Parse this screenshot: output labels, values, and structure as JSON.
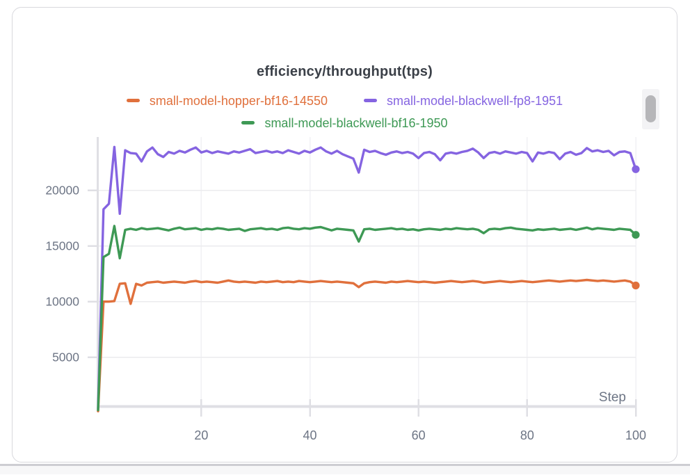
{
  "panel": {
    "background": "#ffffff",
    "border_color": "#d8d8dd"
  },
  "chart_data": {
    "type": "line",
    "title": "efficiency/throughput(tps)",
    "xlabel": "Step",
    "ylabel": "",
    "x_start": 1,
    "x_end": 100,
    "xlim": [
      1,
      100
    ],
    "ylim": [
      0,
      25000
    ],
    "x_ticks": [
      20,
      40,
      60,
      80,
      100
    ],
    "y_ticks": [
      5000,
      10000,
      15000,
      20000
    ],
    "grid": true,
    "legend_position": "top",
    "end_markers": true,
    "series": [
      {
        "name": "small-model-hopper-bf16-14550",
        "color": "#e0703c",
        "values": [
          150,
          10000,
          10000,
          10050,
          11600,
          11650,
          9800,
          11600,
          11450,
          11700,
          11750,
          11800,
          11700,
          11750,
          11800,
          11750,
          11700,
          11800,
          11850,
          11750,
          11800,
          11750,
          11700,
          11800,
          11900,
          11800,
          11750,
          11800,
          11750,
          11700,
          11800,
          11750,
          11800,
          11850,
          11750,
          11800,
          11750,
          11850,
          11800,
          11750,
          11800,
          11850,
          11800,
          11750,
          11800,
          11750,
          11700,
          11650,
          11300,
          11650,
          11750,
          11800,
          11750,
          11700,
          11800,
          11750,
          11800,
          11850,
          11800,
          11750,
          11800,
          11750,
          11700,
          11750,
          11800,
          11850,
          11800,
          11750,
          11800,
          11850,
          11800,
          11700,
          11750,
          11800,
          11850,
          11800,
          11750,
          11800,
          11850,
          11800,
          11750,
          11800,
          11850,
          11900,
          11850,
          11800,
          11850,
          11900,
          11850,
          11900,
          11950,
          11900,
          11850,
          11900,
          11850,
          11800,
          11850,
          11900,
          11800,
          11450
        ]
      },
      {
        "name": "small-model-blackwell-fp8-1951",
        "color": "#8564e1",
        "values": [
          400,
          18300,
          18800,
          23900,
          17900,
          23600,
          23350,
          23300,
          22600,
          23500,
          23850,
          23250,
          23000,
          23450,
          23300,
          23550,
          23400,
          23650,
          23850,
          23400,
          23550,
          23350,
          23500,
          23400,
          23300,
          23500,
          23400,
          23550,
          23700,
          23350,
          23450,
          23550,
          23400,
          23500,
          23350,
          23600,
          23450,
          23300,
          23550,
          23400,
          23650,
          23850,
          23500,
          23300,
          23550,
          23250,
          23050,
          22850,
          21600,
          23650,
          23450,
          23550,
          23350,
          23200,
          23400,
          23500,
          23350,
          23450,
          23300,
          22900,
          23350,
          23450,
          23250,
          22700,
          23300,
          23400,
          23300,
          23450,
          23550,
          23750,
          23400,
          22900,
          23350,
          23450,
          23300,
          23500,
          23400,
          23300,
          23450,
          23350,
          22600,
          23400,
          23300,
          23450,
          23350,
          22800,
          23300,
          23450,
          23200,
          23350,
          23800,
          23500,
          23600,
          23450,
          23550,
          23150,
          23450,
          23500,
          23350,
          21900
        ]
      },
      {
        "name": "small-model-blackwell-bf16-1950",
        "color": "#3e9955",
        "values": [
          250,
          14000,
          14300,
          16800,
          13900,
          16450,
          16550,
          16450,
          16600,
          16500,
          16550,
          16600,
          16500,
          16400,
          16550,
          16650,
          16500,
          16550,
          16600,
          16450,
          16550,
          16500,
          16600,
          16550,
          16450,
          16500,
          16550,
          16350,
          16500,
          16550,
          16600,
          16500,
          16550,
          16450,
          16600,
          16650,
          16550,
          16500,
          16600,
          16550,
          16650,
          16700,
          16550,
          16400,
          16550,
          16500,
          16450,
          16400,
          15400,
          16500,
          16550,
          16450,
          16500,
          16550,
          16600,
          16500,
          16550,
          16450,
          16500,
          16400,
          16500,
          16550,
          16500,
          16450,
          16550,
          16500,
          16600,
          16550,
          16500,
          16550,
          16450,
          16150,
          16500,
          16550,
          16500,
          16600,
          16650,
          16550,
          16500,
          16450,
          16400,
          16500,
          16450,
          16500,
          16550,
          16450,
          16500,
          16550,
          16450,
          16550,
          16650,
          16500,
          16600,
          16550,
          16500,
          16450,
          16550,
          16500,
          16450,
          16000
        ]
      }
    ]
  },
  "axis_style": {
    "label_color": "#6d7585",
    "axis_color": "#dfdfe4",
    "grid_color_h": "#ebebee",
    "grid_color_v": "#f1f1f4",
    "title_color": "#3b4048"
  },
  "scrollbar": {
    "track_color": "#f3f3f5",
    "thumb_color": "#b6b6b9"
  }
}
